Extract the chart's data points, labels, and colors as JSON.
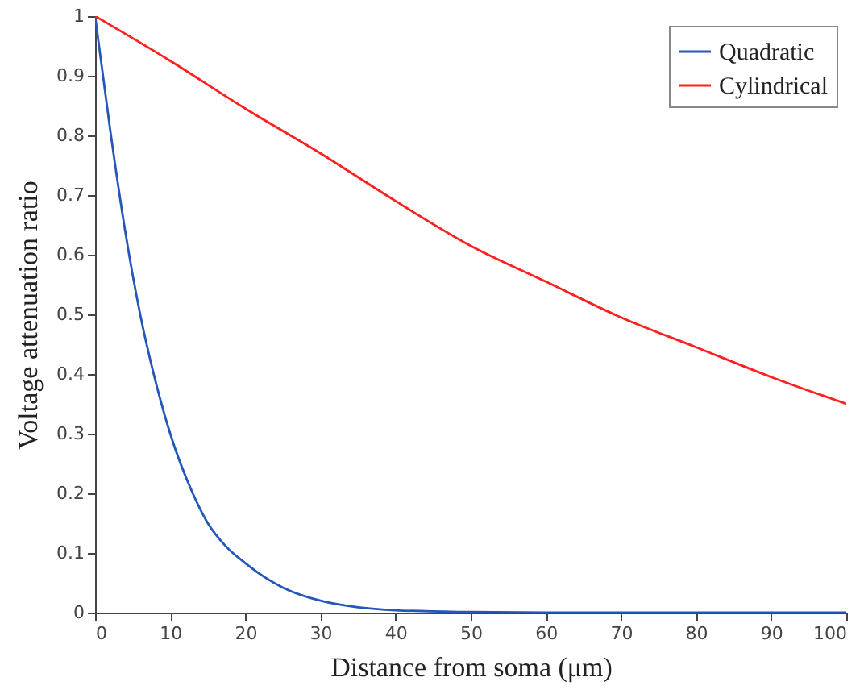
{
  "chart_data": {
    "type": "line",
    "xlabel": "Distance from soma (μm)",
    "ylabel": "Voltage attenuation ratio",
    "xlim": [
      0,
      100
    ],
    "ylim": [
      0,
      1
    ],
    "xticks": [
      0,
      10,
      20,
      30,
      40,
      50,
      60,
      70,
      80,
      90,
      100
    ],
    "yticks": [
      0,
      0.1,
      0.2,
      0.3,
      0.4,
      0.5,
      0.6,
      0.7,
      0.8,
      0.9,
      1
    ],
    "grid": false,
    "legend": "top right",
    "marker": "none",
    "line_style": "solid",
    "series": [
      {
        "name": "Quadratic",
        "color": "#2457b8",
        "x": [
          0,
          2,
          4,
          6,
          8,
          10,
          13,
          15,
          17.5,
          20,
          22.5,
          25,
          30,
          35,
          40,
          50,
          60,
          80,
          100
        ],
        "values": [
          1,
          0.81,
          0.64,
          0.5,
          0.39,
          0.3,
          0.2,
          0.15,
          0.11,
          0.083,
          0.06,
          0.042,
          0.02,
          0.009,
          0.004,
          0.001,
          0,
          0,
          0
        ]
      },
      {
        "name": "Cylindrical",
        "color": "#ff2020",
        "x": [
          0,
          10,
          20,
          30,
          40,
          50,
          60,
          70,
          80,
          90,
          100
        ],
        "values": [
          1,
          0.925,
          0.845,
          0.77,
          0.69,
          0.615,
          0.555,
          0.495,
          0.445,
          0.395,
          0.35
        ]
      }
    ]
  }
}
